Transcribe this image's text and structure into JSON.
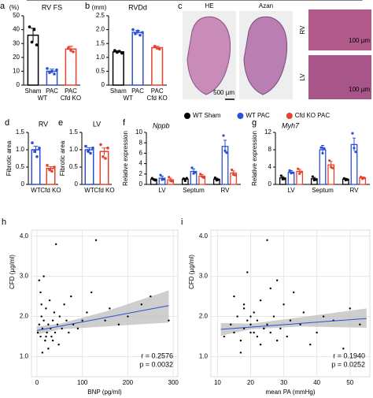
{
  "images": {
    "panel": "c",
    "titles": [
      "HE",
      "Azan"
    ],
    "scale_bar": "500 µm",
    "insets": [
      "RV",
      "LV"
    ],
    "inset_scale_bars": [
      "100 µm",
      "100 µm"
    ]
  },
  "chart_data": [
    {
      "type": "bar",
      "panel": "a",
      "title": "RV FS",
      "ylabel": "(%)",
      "categories": [
        "Sham",
        "PAC",
        "PAC"
      ],
      "groups": [
        "WT",
        "Cfd KO"
      ],
      "values": [
        36,
        10,
        26
      ],
      "errors": [
        5,
        1.5,
        2
      ],
      "points": [
        [
          42,
          31,
          40,
          29
        ],
        [
          12,
          9,
          10,
          8,
          11
        ],
        [
          27,
          25,
          24
        ]
      ],
      "colors": [
        "#000000",
        "#2b4fd6",
        "#e8412c"
      ],
      "ylim": [
        0,
        50
      ],
      "yticks": [
        0,
        10,
        20,
        30,
        40,
        50
      ],
      "significance": [
        {
          "label": "**",
          "from": 1,
          "to": 2
        }
      ]
    },
    {
      "type": "bar",
      "panel": "b",
      "title": "RVDd",
      "ylabel": "(mm)",
      "categories": [
        "Sham",
        "PAC",
        "PAC"
      ],
      "groups": [
        "WT",
        "Cfd KO"
      ],
      "values": [
        1.2,
        1.9,
        1.35
      ],
      "errors": [
        0.04,
        0.07,
        0.05
      ],
      "points": [
        [
          1.25,
          1.18,
          1.22,
          1.15
        ],
        [
          2.0,
          1.85,
          1.95,
          1.8,
          1.9
        ],
        [
          1.4,
          1.33,
          1.3
        ]
      ],
      "colors": [
        "#000000",
        "#2b4fd6",
        "#e8412c"
      ],
      "ylim": [
        0,
        2.5
      ],
      "yticks": [
        0,
        0.5,
        {
          "value": 1,
          "label": "1.0"
        },
        1.5,
        {
          "value": 2,
          "label": "2.0"
        },
        2.5
      ],
      "significance": [
        {
          "label": "**",
          "from": 1,
          "to": 2
        }
      ]
    },
    {
      "type": "bar",
      "panel": "d",
      "title": "RV",
      "ylabel": "Fibrotic area",
      "categories": [
        "WT",
        "Cfd KO"
      ],
      "values": [
        1.0,
        0.46
      ],
      "errors": [
        0.1,
        0.05
      ],
      "points": [
        [
          1.2,
          0.95,
          0.8,
          1.05
        ],
        [
          0.55,
          0.42,
          0.38,
          0.5
        ]
      ],
      "colors": [
        "#2b4fd6",
        "#e8412c"
      ],
      "ylim": [
        0,
        1.5
      ],
      "yticks": [
        0,
        0.5,
        {
          "value": 1,
          "label": "1.0"
        },
        1.5
      ],
      "significance": [
        {
          "label": "**",
          "from": 0,
          "to": 1
        }
      ]
    },
    {
      "type": "bar",
      "panel": "e",
      "title": "LV",
      "ylabel": "Fibrotic area",
      "categories": [
        "WT",
        "Cfd KO"
      ],
      "values": [
        1.0,
        0.95
      ],
      "errors": [
        0.06,
        0.1
      ],
      "points": [
        [
          1.1,
          0.95,
          0.9,
          1.05
        ],
        [
          1.15,
          0.8,
          0.75,
          1.05
        ]
      ],
      "colors": [
        "#2b4fd6",
        "#e8412c"
      ],
      "ylim": [
        0,
        1.5
      ],
      "yticks": [
        0,
        0.5,
        {
          "value": 1,
          "label": "1.0"
        },
        1.5
      ]
    },
    {
      "type": "grouped_bar",
      "panel": "f",
      "title": "Nppb",
      "ylabel": "Relative expression",
      "categories": [
        "LV",
        "Septum",
        "RV"
      ],
      "series": [
        {
          "name": "WT Sham",
          "color": "#000000",
          "values": [
            1,
            1,
            1
          ],
          "errors": [
            0.1,
            0.15,
            0.2
          ],
          "points": [
            [
              1.2,
              0.9,
              0.8
            ],
            [
              1.1,
              0.7,
              1.2
            ],
            [
              1.3,
              0.8,
              0.9
            ]
          ]
        },
        {
          "name": "WT PAC",
          "color": "#2b4fd6",
          "values": [
            1.2,
            2.5,
            7.3
          ],
          "errors": [
            0.4,
            0.5,
            1.2
          ],
          "points": [
            [
              1.8,
              0.9,
              1.0
            ],
            [
              3.2,
              2.1,
              2.3
            ],
            [
              9.4,
              6.5,
              6.1
            ]
          ]
        },
        {
          "name": "Cfd KO PAC",
          "color": "#e8412c",
          "values": [
            0.9,
            1.6,
            2.2
          ],
          "errors": [
            0.3,
            0.3,
            0.4
          ],
          "points": [
            [
              1.4,
              0.7,
              0.6
            ],
            [
              2.0,
              1.5,
              1.3
            ],
            [
              2.8,
              1.9,
              1.8
            ]
          ]
        }
      ],
      "ylim": [
        0,
        10
      ],
      "yticks": [
        0,
        2,
        4,
        6,
        8,
        10
      ],
      "significance": [
        {
          "label": "*",
          "category": 2
        }
      ]
    },
    {
      "type": "grouped_bar",
      "panel": "g",
      "title": "Myh7",
      "ylabel": "Relative expression",
      "categories": [
        "LV",
        "Septum",
        "RV"
      ],
      "series": [
        {
          "values": [
            1.5,
            1.3,
            1.2
          ],
          "errors": [
            0.3,
            0.3,
            0.2
          ],
          "points": [
            [
              2.0,
              1.2,
              1.3
            ],
            [
              1.8,
              1.0,
              1.1
            ],
            [
              1.4,
              1.0,
              1.1
            ]
          ]
        },
        {
          "values": [
            2.8,
            8,
            9.2
          ],
          "errors": [
            0.4,
            1.0,
            1.5
          ],
          "points": [
            [
              3.2,
              2.6,
              2.7
            ],
            [
              8.5,
              7.2,
              8.3
            ],
            [
              11.8,
              8.4,
              7.5
            ]
          ]
        },
        {
          "values": [
            3,
            4.5,
            1.5
          ],
          "errors": [
            0.5,
            0.8,
            0.2
          ],
          "points": [
            [
              3.6,
              2.5,
              2.9
            ],
            [
              5.5,
              4.0,
              3.8
            ],
            [
              1.7,
              1.3,
              1.5
            ]
          ]
        }
      ],
      "ylim": [
        0,
        12
      ],
      "yticks": [
        0,
        4,
        8,
        12
      ],
      "significance": [
        {
          "label": "**",
          "category": 2
        }
      ]
    },
    {
      "type": "scatter",
      "panel": "h",
      "xlabel": "BNP (pg/ml)",
      "ylabel": "CFD (µg/ml)",
      "x": [
        2,
        5,
        8,
        10,
        12,
        15,
        18,
        20,
        22,
        25,
        28,
        30,
        32,
        35,
        38,
        40,
        42,
        45,
        48,
        50,
        55,
        60,
        65,
        70,
        75,
        80,
        90,
        100,
        110,
        120,
        130,
        150,
        160,
        180,
        200,
        230,
        250,
        290,
        8,
        15,
        25,
        35,
        5,
        12,
        20,
        10
      ],
      "y": [
        1.6,
        1.8,
        1.5,
        2.0,
        1.7,
        1.9,
        1.4,
        2.2,
        1.6,
        1.8,
        2.4,
        1.7,
        1.5,
        1.9,
        2.1,
        1.6,
        3.8,
        1.8,
        1.3,
        2.0,
        1.7,
        2.3,
        1.9,
        1.6,
        2.5,
        1.8,
        1.7,
        1.9,
        2.1,
        2.6,
        3.9,
        1.9,
        2.2,
        1.8,
        2.0,
        2.3,
        2.5,
        1.9,
        2.6,
        3.0,
        1.2,
        1.4,
        2.9,
        1.1,
        1.5,
        2.3
      ],
      "fit": {
        "x": [
          0,
          290
        ],
        "y": [
          1.65,
          2.27
        ]
      },
      "band": {
        "x": [
          0,
          50,
          150,
          290
        ],
        "lower": [
          1.55,
          1.68,
          1.75,
          1.85
        ],
        "upper": [
          1.75,
          1.82,
          2.12,
          2.65
        ]
      },
      "xlim": [
        -12,
        310
      ],
      "ylim": [
        0.5,
        4.15
      ],
      "xticks": [
        0,
        100,
        200,
        300
      ],
      "yticks": [
        {
          "value": 1,
          "label": "1.0"
        },
        {
          "value": 2,
          "label": "2.0"
        },
        {
          "value": 3,
          "label": "3.0"
        },
        {
          "value": 4,
          "label": "4.0"
        }
      ],
      "annotations": [
        "r = 0.2576",
        "p = 0.0032"
      ],
      "color": "#2b4fd6"
    },
    {
      "type": "scatter",
      "panel": "i",
      "xlabel": "mean PA (mmHg)",
      "ylabel": "CFD (µg/ml)",
      "x": [
        12,
        14,
        15,
        16,
        17,
        18,
        18,
        19,
        20,
        20,
        21,
        22,
        22,
        23,
        24,
        25,
        25,
        26,
        27,
        28,
        29,
        30,
        31,
        32,
        33,
        35,
        36,
        38,
        40,
        42,
        45,
        48,
        50,
        53,
        15,
        17,
        19,
        21,
        23,
        26,
        28,
        20,
        24,
        18
      ],
      "y": [
        1.5,
        1.8,
        1.6,
        2.0,
        1.4,
        1.7,
        2.2,
        1.9,
        1.6,
        1.8,
        2.1,
        1.5,
        1.9,
        2.4,
        1.7,
        1.8,
        3.9,
        1.6,
        2.0,
        2.9,
        1.7,
        2.3,
        1.5,
        1.9,
        2.6,
        1.8,
        2.1,
        1.3,
        1.6,
        2.0,
        1.9,
        1.2,
        2.2,
        1.8,
        2.5,
        1.1,
        3.1,
        1.6,
        1.3,
        2.7,
        1.4,
        2.0,
        1.7,
        2.3
      ],
      "fit": {
        "x": [
          11,
          55
        ],
        "y": [
          1.68,
          1.95
        ]
      },
      "band": {
        "x": [
          11,
          20,
          35,
          55
        ],
        "lower": [
          1.52,
          1.68,
          1.75,
          1.72
        ],
        "upper": [
          1.84,
          1.82,
          1.98,
          2.2
        ]
      },
      "xlim": [
        8,
        56
      ],
      "ylim": [
        0.5,
        4.15
      ],
      "xticks": [
        10,
        20,
        30,
        40,
        50
      ],
      "yticks": [
        {
          "value": 1,
          "label": "1.0"
        },
        {
          "value": 2,
          "label": "2.0"
        },
        {
          "value": 3,
          "label": "3.0"
        },
        {
          "value": 4,
          "label": "4.0"
        }
      ],
      "annotations": [
        "r = 0.1940",
        "p = 0.0252"
      ],
      "color": "#2b4fd6"
    }
  ]
}
